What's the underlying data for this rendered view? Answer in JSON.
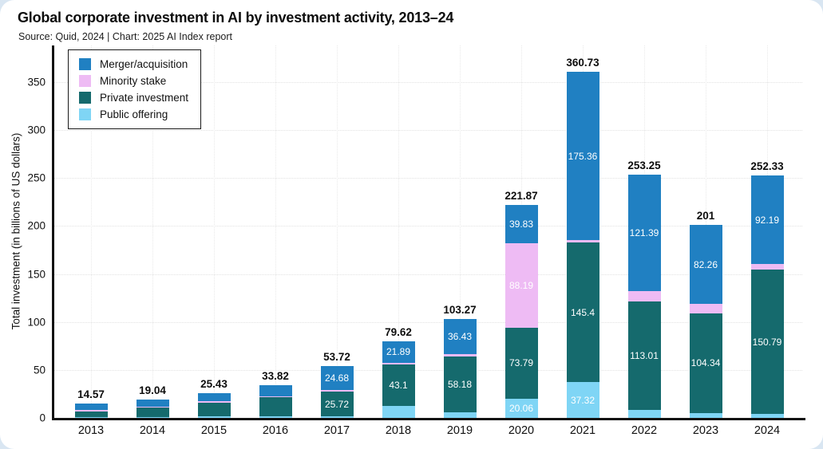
{
  "page": {
    "background_color": "#d9e6f2",
    "card_color": "#ffffff"
  },
  "chart_data": {
    "type": "bar",
    "variant": "stacked-vertical",
    "title": "Global corporate investment in AI by investment activity, 2013–24",
    "source_line": "Source: Quid, 2024 | Chart: 2025 AI Index report",
    "ylabel": "Total investment (in billions of US dollars)",
    "xlabel": "",
    "categories": [
      "2013",
      "2014",
      "2015",
      "2016",
      "2017",
      "2018",
      "2019",
      "2020",
      "2021",
      "2022",
      "2023",
      "2024"
    ],
    "y_ticks": [
      0,
      50,
      100,
      150,
      200,
      250,
      300,
      350
    ],
    "ylim": [
      0,
      388
    ],
    "grid": "faint dotted horizontal lines at each y tick and vertical lines at each year",
    "legend_position": "top-left inside plot, black-bordered box",
    "legend": [
      {
        "key": "merger_acquisition",
        "label": "Merger/acquisition"
      },
      {
        "key": "minority_stake",
        "label": "Minority stake"
      },
      {
        "key": "private_investment",
        "label": "Private investment"
      },
      {
        "key": "public_offering",
        "label": "Public offering"
      }
    ],
    "colors": {
      "merger_acquisition": "#2080c2",
      "minority_stake": "#eebbf4",
      "private_investment": "#156a6d",
      "public_offering": "#7fd5f5",
      "segment_label_text": "#ffffff",
      "total_label_text": "#0d0d0d",
      "axis": "#111111"
    },
    "stack_order": [
      "public_offering",
      "private_investment",
      "minority_stake",
      "merger_acquisition"
    ],
    "series": [
      {
        "key": "merger_acquisition",
        "name": "Merger/acquisition",
        "values": [
          6.55,
          7.7,
          8.0,
          11.0,
          24.68,
          21.89,
          36.43,
          39.83,
          175.36,
          121.39,
          82.26,
          92.19
        ],
        "labels": [
          "",
          "",
          "",
          "",
          "24.68",
          "21.89",
          "36.43",
          "39.83",
          "175.36",
          "121.39",
          "82.26",
          "92.19"
        ]
      },
      {
        "key": "minority_stake",
        "name": "Minority stake",
        "values": [
          1.13,
          0.85,
          1.47,
          1.5,
          1.8,
          1.8,
          3.06,
          88.19,
          2.65,
          10.59,
          9.5,
          5.55
        ],
        "labels": [
          "",
          "",
          "",
          "",
          "",
          "",
          "",
          "88.19",
          "",
          "",
          "",
          ""
        ]
      },
      {
        "key": "private_investment",
        "name": "Private investment",
        "values": [
          6.12,
          9.35,
          14.5,
          19.8,
          25.72,
          43.1,
          58.18,
          73.79,
          145.4,
          113.01,
          104.34,
          150.79
        ],
        "labels": [
          "",
          "",
          "",
          "",
          "25.72",
          "43.1",
          "58.18",
          "73.79",
          "145.4",
          "113.01",
          "104.34",
          "150.79"
        ]
      },
      {
        "key": "public_offering",
        "name": "Public offering",
        "values": [
          0.77,
          1.14,
          1.46,
          1.52,
          1.52,
          12.83,
          5.6,
          20.06,
          37.32,
          8.26,
          4.9,
          3.8
        ],
        "labels": [
          "",
          "",
          "",
          "",
          "",
          "",
          "",
          "20.06",
          "37.32",
          "",
          "",
          ""
        ]
      }
    ],
    "totals": [
      14.57,
      19.04,
      25.43,
      33.82,
      53.72,
      79.62,
      103.27,
      221.87,
      360.73,
      253.25,
      201,
      252.33
    ],
    "total_labels": [
      "14.57",
      "19.04",
      "25.43",
      "33.82",
      "53.72",
      "79.62",
      "103.27",
      "221.87",
      "360.73",
      "253.25",
      "201",
      "252.33"
    ]
  }
}
